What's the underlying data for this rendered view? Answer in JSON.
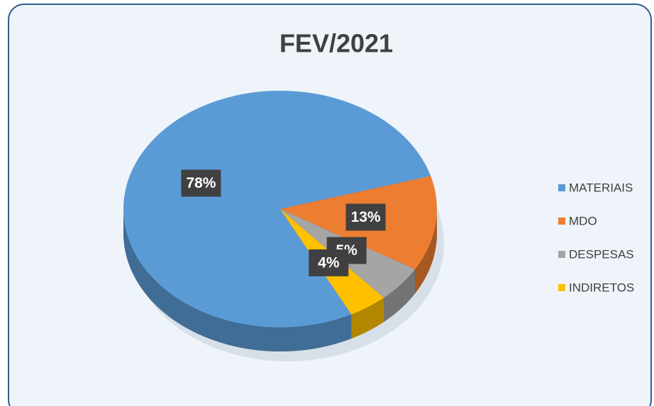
{
  "chart_data": {
    "type": "pie",
    "title": "FEV/2021",
    "categories": [
      "MATERIAIS",
      "MDO",
      "DESPESAS",
      "INDIRETOS"
    ],
    "values": [
      78,
      13,
      5,
      4
    ],
    "value_labels": [
      "78%",
      "13%",
      "5%",
      "4%"
    ],
    "colors": [
      "#5b9bd5",
      "#ed7d31",
      "#a5a5a5",
      "#ffc000"
    ],
    "legend": "right"
  }
}
